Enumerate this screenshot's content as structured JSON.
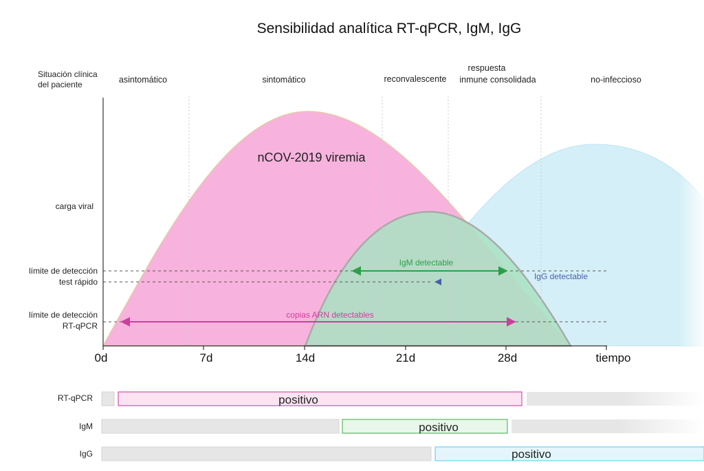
{
  "title": "Sensibilidad analítica RT-qPCR, IgM, IgG",
  "clinical_situation_label": [
    "Situación clínica",
    "del paciente"
  ],
  "phases": {
    "asymptomatic": "asintomático",
    "symptomatic": "sintomático",
    "convalescent": "reconvalescente",
    "immune_response": [
      "respuesta",
      "inmune consolidada"
    ],
    "non_infectious": "no-infeccioso"
  },
  "y_labels": {
    "viral_load": "carga viral",
    "rapid_test_limit": [
      "límite de detección",
      "test rápido"
    ],
    "rtqpcr_limit": [
      "límite de detección",
      "RT-qPCR"
    ]
  },
  "x_ticks": [
    "0d",
    "7d",
    "14d",
    "21d",
    "28d",
    "tiempo"
  ],
  "curves": {
    "viremia_label": "nCOV-2019 viremia",
    "viremia_color": "#f7b3dd",
    "igm_color": "#a9e2c2",
    "igg_color": "#d5eff8"
  },
  "arrows": {
    "igm": {
      "label": "IgM detectable",
      "color": "#2e9e4a"
    },
    "igg": {
      "label": "IgG detectable",
      "color": "#4a5fa8"
    },
    "rna": {
      "label": "copias ARN detectables",
      "color": "#cc3f9c"
    }
  },
  "result_bars": [
    {
      "name": "RT-qPCR",
      "result": "positivo",
      "color": "#d94fa8"
    },
    {
      "name": "IgM",
      "result": "positivo",
      "color": "#5cb860"
    },
    {
      "name": "IgG",
      "result": "positivo",
      "color": "#6fd0e8"
    }
  ]
}
